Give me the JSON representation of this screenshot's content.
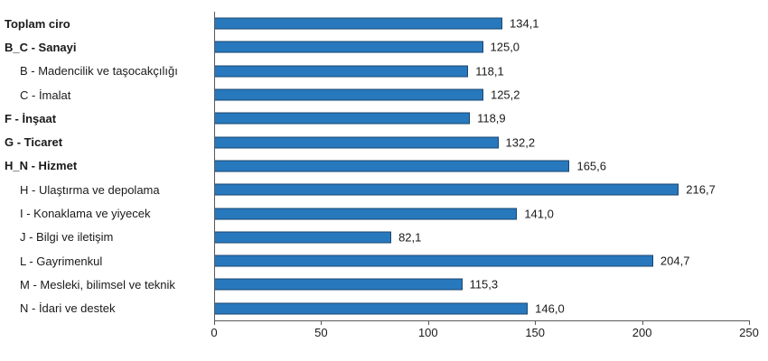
{
  "chart_data": {
    "type": "bar",
    "orientation": "horizontal",
    "title": "",
    "xlabel": "",
    "ylabel": "",
    "xlim": [
      0,
      250
    ],
    "x_ticks": [
      0,
      50,
      100,
      150,
      200,
      250
    ],
    "x_tick_labels": [
      "0",
      "50",
      "100",
      "150",
      "200",
      "250"
    ],
    "grid": false,
    "legend": false,
    "categories": [
      "Toplam ciro",
      "B_C - Sanayi",
      "B - Madencilik ve taşocakçılığı",
      "C - İmalat",
      "F - İnşaat",
      "G - Ticaret",
      "H_N - Hizmet",
      "H - Ulaştırma ve depolama",
      "I - Konaklama ve yiyecek",
      "J - Bilgi ve iletişim",
      "L - Gayrimenkul",
      "M - Mesleki, bilimsel ve teknik",
      "N - İdari ve destek"
    ],
    "values": [
      134.1,
      125.0,
      118.1,
      125.2,
      118.9,
      132.2,
      165.6,
      216.7,
      141.0,
      82.1,
      204.7,
      115.3,
      146.0
    ],
    "value_labels": [
      "134,1",
      "125,0",
      "118,1",
      "125,2",
      "118,9",
      "132,2",
      "165,6",
      "216,7",
      "141,0",
      "82,1",
      "204,7",
      "115,3",
      "146,0"
    ],
    "bold_rows": [
      true,
      true,
      false,
      false,
      true,
      true,
      true,
      false,
      false,
      false,
      false,
      false,
      false
    ],
    "indent_rows": [
      false,
      false,
      true,
      true,
      false,
      false,
      false,
      true,
      true,
      true,
      true,
      true,
      true
    ],
    "colors": {
      "bar_fill": "#2878BE",
      "bar_border": "#17466F",
      "axis": "#595959",
      "text": "#1A1A1A"
    }
  }
}
